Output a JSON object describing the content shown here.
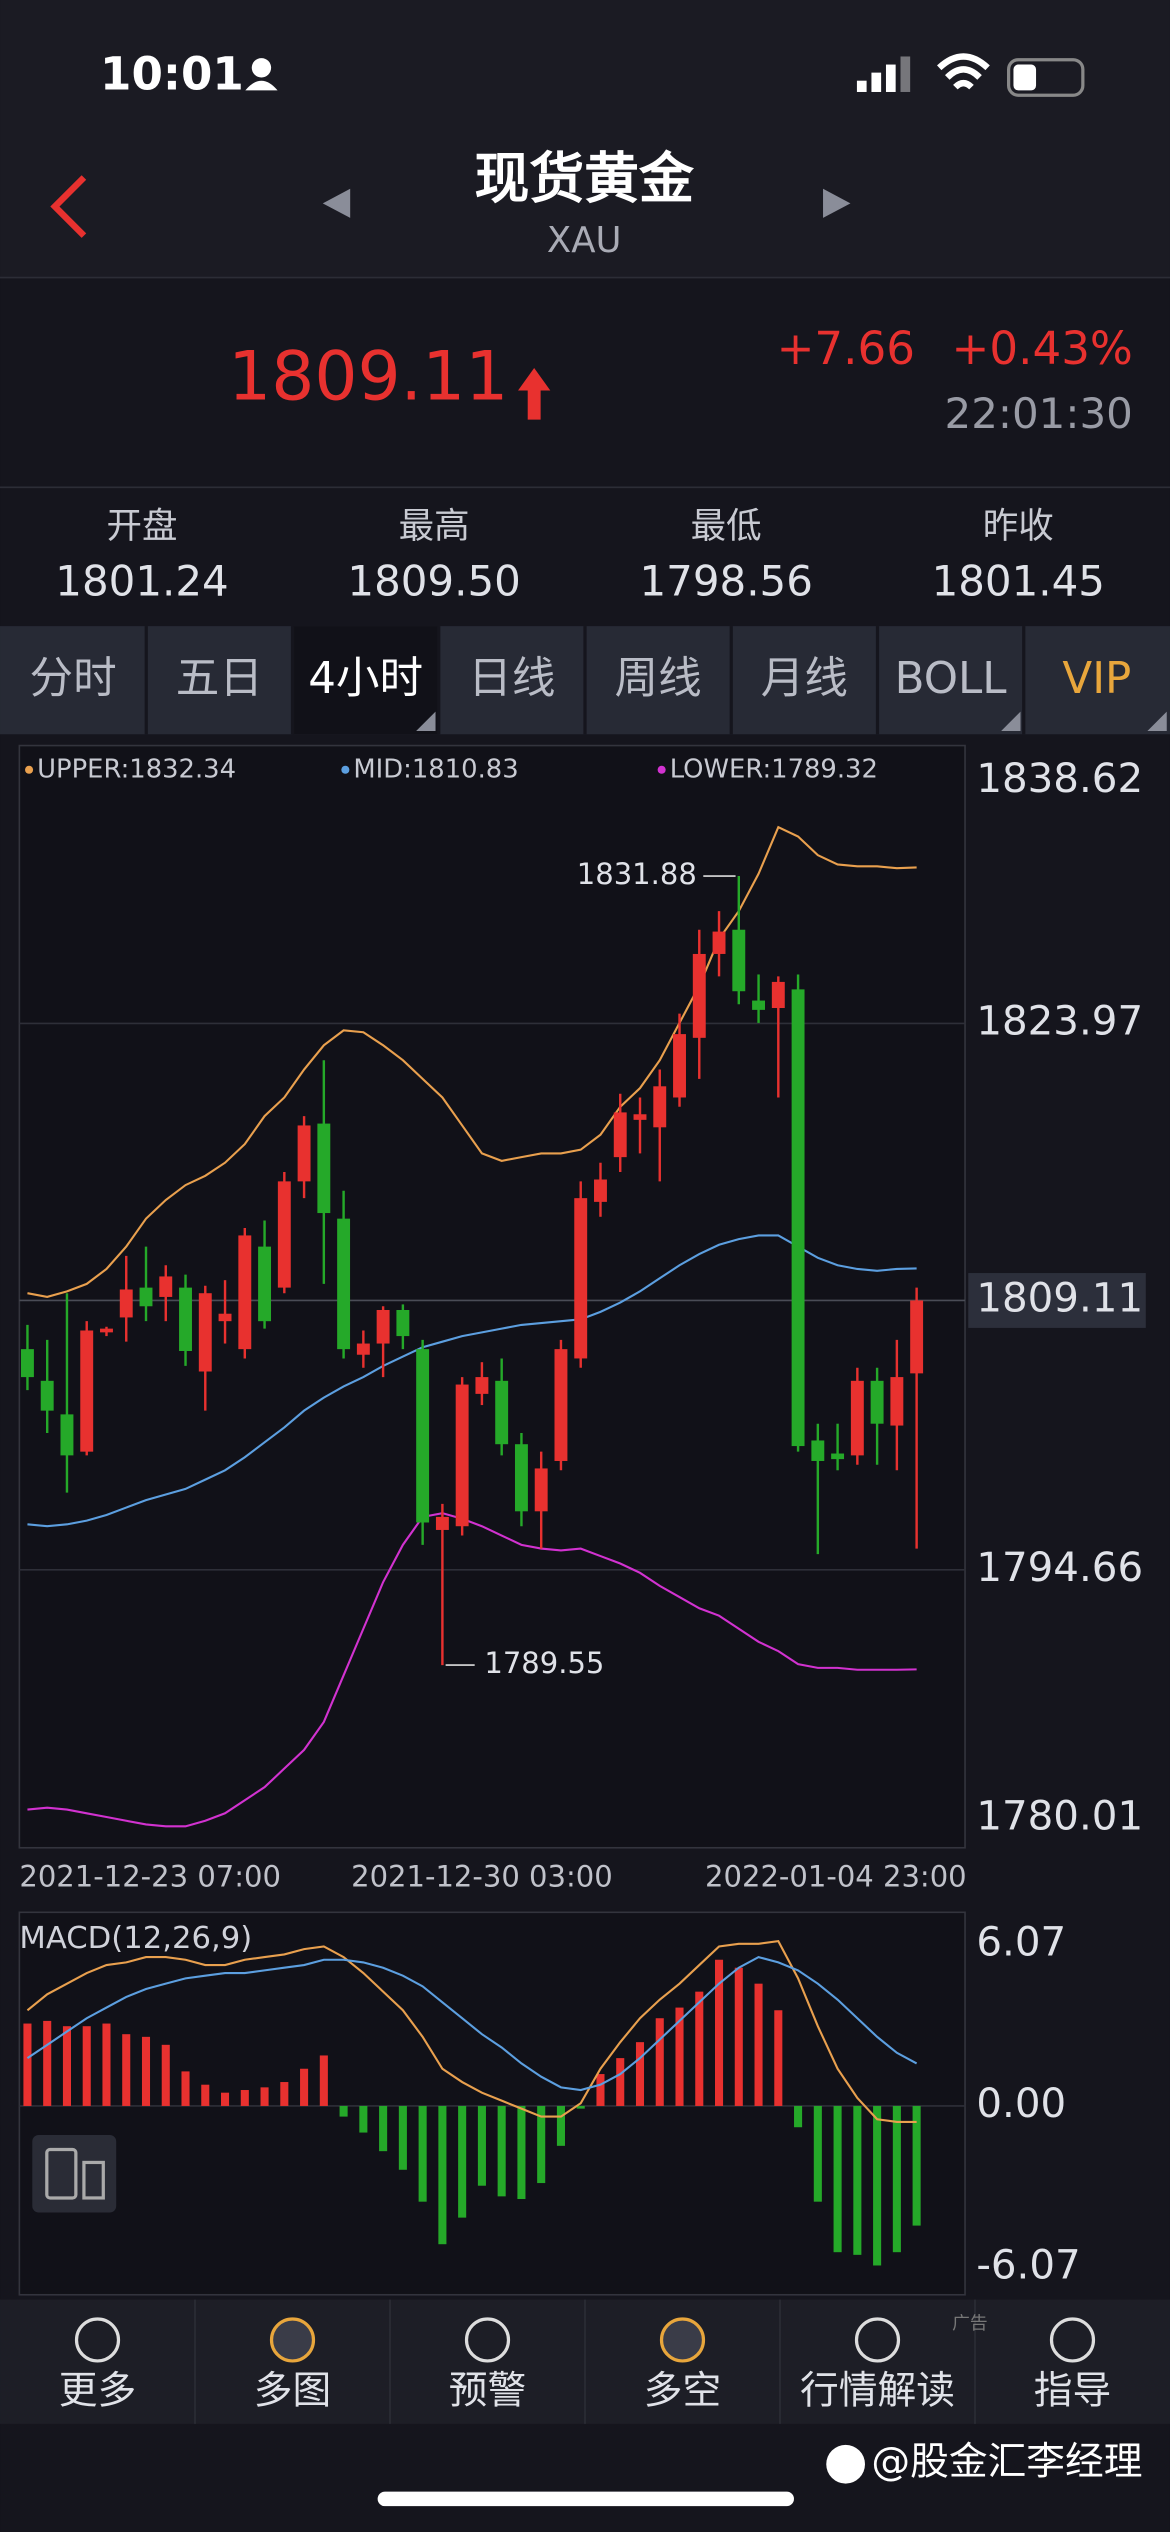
{
  "status_bar": {
    "time": "10:01"
  },
  "header": {
    "title": "现货黄金",
    "symbol": "XAU"
  },
  "quote": {
    "price": "1809.11",
    "change": "+7.66",
    "change_pct": "+0.43%",
    "time": "22:01:30"
  },
  "stats": [
    {
      "label": "开盘",
      "value": "1801.24"
    },
    {
      "label": "最高",
      "value": "1809.50"
    },
    {
      "label": "最低",
      "value": "1798.56"
    },
    {
      "label": "昨收",
      "value": "1801.45"
    }
  ],
  "tabs": [
    "分时",
    "五日",
    "4小时",
    "日线",
    "周线",
    "月线",
    "BOLL",
    "VIP"
  ],
  "chart_data": [
    {
      "type": "candlestick",
      "up_color": "#e8312f",
      "down_color": "#25a929",
      "categories": [
        "2021-12-23 07:00",
        null,
        null,
        null,
        null,
        null,
        null,
        null,
        null,
        null,
        null,
        null,
        null,
        null,
        null,
        null,
        null,
        null,
        null,
        null,
        null,
        null,
        null,
        "2021-12-30 03:00",
        null,
        null,
        null,
        null,
        null,
        null,
        null,
        null,
        null,
        null,
        null,
        null,
        null,
        null,
        null,
        null,
        null,
        null,
        null,
        null,
        null,
        "2022-01-04 23:00"
      ],
      "open": [
        1806.5,
        1804.8,
        1803.0,
        1801.0,
        1807.4,
        1808.2,
        1809.8,
        1809.3,
        1809.8,
        1805.3,
        1808.0,
        1806.5,
        1812.0,
        1809.8,
        1815.5,
        1818.6,
        1813.5,
        1806.2,
        1806.8,
        1808.6,
        1806.5,
        1796.8,
        1797.0,
        1804.1,
        1804.8,
        1801.4,
        1797.8,
        1800.5,
        1806.0,
        1814.4,
        1816.8,
        1818.8,
        1818.4,
        1820.0,
        1823.2,
        1827.7,
        1829.0,
        1825.2,
        1824.8,
        1825.8,
        1801.6,
        1800.9,
        1800.8,
        1804.8,
        1802.4,
        1805.2
      ],
      "high": [
        1807.8,
        1807.0,
        1809.5,
        1808.0,
        1807.7,
        1811.5,
        1812.0,
        1811.0,
        1810.5,
        1809.9,
        1810.2,
        1813.0,
        1813.4,
        1816.0,
        1819.0,
        1822.0,
        1815.0,
        1807.5,
        1808.8,
        1808.9,
        1807.0,
        1798.2,
        1805.0,
        1805.8,
        1806.0,
        1802.0,
        1801.0,
        1807.0,
        1815.5,
        1816.5,
        1820.2,
        1820.0,
        1821.5,
        1824.5,
        1829.0,
        1830.0,
        1831.88,
        1826.6,
        1826.5,
        1826.6,
        1802.5,
        1802.5,
        1805.5,
        1805.5,
        1807.0,
        1809.8
      ],
      "low": [
        1804.3,
        1802.0,
        1798.8,
        1800.8,
        1807.2,
        1806.9,
        1808.0,
        1808.0,
        1805.6,
        1803.2,
        1806.8,
        1806.0,
        1807.6,
        1809.5,
        1814.6,
        1810.0,
        1806.0,
        1805.5,
        1805.0,
        1806.5,
        1796.0,
        1789.55,
        1796.5,
        1803.5,
        1800.8,
        1797.0,
        1795.8,
        1800.0,
        1805.5,
        1813.6,
        1816.0,
        1817.0,
        1815.5,
        1819.5,
        1821.0,
        1826.5,
        1825.0,
        1824.0,
        1820.0,
        1801.0,
        1795.5,
        1800.0,
        1800.3,
        1800.3,
        1800.0,
        1795.8
      ],
      "close": [
        1805.0,
        1803.2,
        1800.8,
        1807.5,
        1807.6,
        1809.7,
        1808.8,
        1810.4,
        1806.4,
        1809.5,
        1808.4,
        1812.6,
        1808.0,
        1815.5,
        1818.5,
        1813.8,
        1806.5,
        1806.8,
        1808.6,
        1807.2,
        1797.2,
        1797.5,
        1804.6,
        1805.0,
        1801.4,
        1797.8,
        1800.1,
        1806.5,
        1814.6,
        1815.6,
        1819.2,
        1819.1,
        1820.6,
        1823.4,
        1827.7,
        1828.9,
        1825.7,
        1824.7,
        1826.2,
        1801.3,
        1800.5,
        1800.6,
        1804.8,
        1802.5,
        1805.0,
        1809.11
      ],
      "series": [
        {
          "name": "UPPER:1832.34",
          "color": "#e9a04e",
          "values": [
            1809.5,
            1809.3,
            1809.6,
            1810.0,
            1810.8,
            1812.0,
            1813.5,
            1814.5,
            1815.3,
            1815.8,
            1816.5,
            1817.5,
            1819.0,
            1820.0,
            1821.5,
            1822.8,
            1823.6,
            1823.5,
            1822.8,
            1822.0,
            1821.0,
            1820.0,
            1818.5,
            1817.0,
            1816.6,
            1816.8,
            1817.0,
            1817.0,
            1817.2,
            1818.0,
            1819.5,
            1820.5,
            1822.0,
            1824.0,
            1826.0,
            1828.5,
            1830.0,
            1832.0,
            1834.5,
            1834.0,
            1833.0,
            1832.5,
            1832.4,
            1832.4,
            1832.3,
            1832.34
          ]
        },
        {
          "name": "MID:1810.83",
          "color": "#5c9fe0",
          "values": [
            1797.1,
            1797.0,
            1797.1,
            1797.3,
            1797.6,
            1798.0,
            1798.4,
            1798.7,
            1799.0,
            1799.5,
            1800.0,
            1800.7,
            1801.5,
            1802.3,
            1803.2,
            1803.9,
            1804.5,
            1805.0,
            1805.6,
            1806.1,
            1806.6,
            1806.9,
            1807.2,
            1807.4,
            1807.6,
            1807.8,
            1807.9,
            1808.0,
            1808.1,
            1808.5,
            1809.0,
            1809.6,
            1810.3,
            1811.0,
            1811.6,
            1812.1,
            1812.4,
            1812.6,
            1812.6,
            1812.0,
            1811.4,
            1811.0,
            1810.8,
            1810.7,
            1810.8,
            1810.83
          ]
        },
        {
          "name": "LOWER:1789.32",
          "color": "#d232d0",
          "values": [
            1781.8,
            1781.9,
            1781.8,
            1781.6,
            1781.4,
            1781.2,
            1781.0,
            1780.9,
            1780.9,
            1781.2,
            1781.6,
            1782.3,
            1783.0,
            1784.0,
            1785.0,
            1786.5,
            1789.0,
            1791.5,
            1794.0,
            1796.0,
            1797.5,
            1797.7,
            1797.4,
            1797.0,
            1796.5,
            1796.0,
            1795.8,
            1795.7,
            1795.8,
            1795.4,
            1795.0,
            1794.5,
            1793.8,
            1793.2,
            1792.6,
            1792.2,
            1791.5,
            1790.8,
            1790.3,
            1789.6,
            1789.4,
            1789.4,
            1789.3,
            1789.3,
            1789.3,
            1789.32
          ]
        }
      ],
      "annotations": [
        "1831.88",
        "1789.55"
      ],
      "ylim": [
        1780.01,
        1838.62
      ],
      "yticks": [
        1838.62,
        1823.97,
        1809.11,
        1794.66,
        1780.01
      ],
      "grid": true
    },
    {
      "type": "macd",
      "title": "MACD(12,26,9)",
      "up_color": "#e8312f",
      "down_color": "#25a929",
      "values": [
        3.1,
        3.2,
        3.0,
        3.0,
        3.1,
        2.7,
        2.6,
        2.3,
        1.3,
        0.8,
        0.5,
        0.6,
        0.7,
        0.9,
        1.4,
        1.9,
        -0.4,
        -1.0,
        -1.7,
        -2.4,
        -3.6,
        -5.2,
        -4.2,
        -3.0,
        -3.4,
        -3.5,
        -2.9,
        -1.5,
        -0.1,
        1.2,
        1.8,
        2.4,
        3.3,
        3.7,
        4.3,
        5.5,
        5.2,
        4.6,
        3.6,
        -0.8,
        -3.6,
        -5.5,
        -5.6,
        -6.0,
        -5.5,
        -4.5
      ],
      "series": [
        {
          "color": "#e9a04e",
          "values": [
            3.6,
            4.2,
            4.6,
            5.0,
            5.3,
            5.4,
            5.6,
            5.6,
            5.5,
            5.3,
            5.3,
            5.5,
            5.6,
            5.7,
            5.9,
            6.0,
            5.6,
            5.0,
            4.3,
            3.6,
            2.6,
            1.4,
            0.9,
            0.5,
            0.2,
            -0.1,
            -0.4,
            -0.4,
            0.1,
            1.4,
            2.4,
            3.3,
            4.0,
            4.6,
            5.3,
            6.0,
            6.1,
            6.1,
            6.2,
            4.8,
            3.0,
            1.4,
            0.3,
            -0.5,
            -0.6,
            -0.6
          ]
        },
        {
          "color": "#5c9fe0",
          "values": [
            1.8,
            2.3,
            2.8,
            3.3,
            3.7,
            4.1,
            4.4,
            4.6,
            4.8,
            4.9,
            5.0,
            5.0,
            5.1,
            5.2,
            5.3,
            5.5,
            5.5,
            5.4,
            5.2,
            4.9,
            4.5,
            3.9,
            3.3,
            2.7,
            2.2,
            1.6,
            1.1,
            0.7,
            0.6,
            0.8,
            1.2,
            1.8,
            2.5,
            3.2,
            3.9,
            4.6,
            5.2,
            5.6,
            5.4,
            5.1,
            4.6,
            4.0,
            3.3,
            2.6,
            2.0,
            1.6
          ]
        }
      ],
      "ylim": [
        -6.07,
        6.07
      ],
      "yticks": [
        6.07,
        {
          "value": 0,
          "label": "0.00"
        },
        -6.07
      ]
    }
  ],
  "nav": [
    "更多",
    "多图",
    "预警",
    "多空",
    "行情解读",
    "指导"
  ],
  "ad_label": "广告",
  "watermark": "@股金汇李经理"
}
